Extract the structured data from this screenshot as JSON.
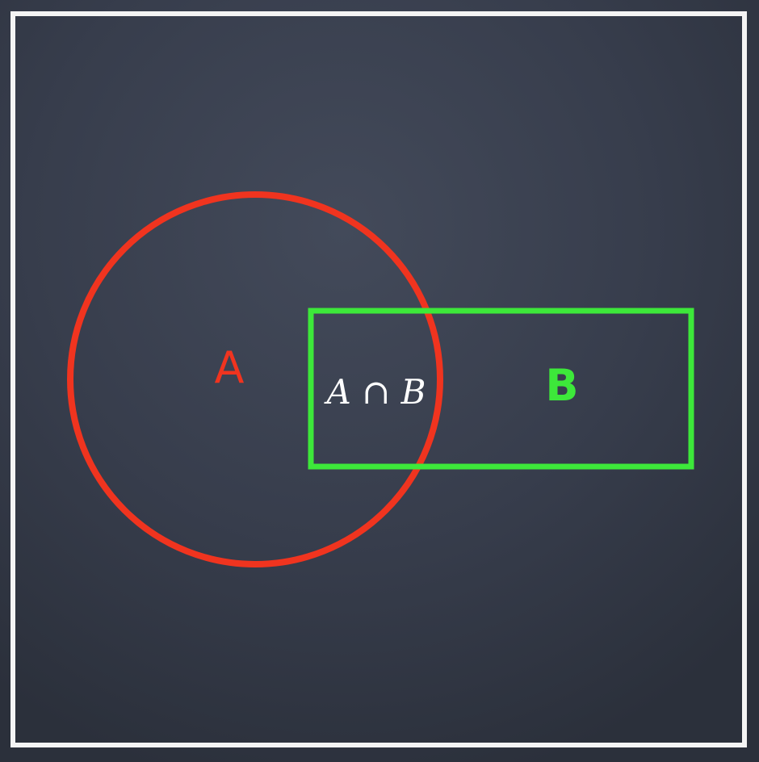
{
  "diagram": {
    "background_color": "#363c4b",
    "frame_color": "#f4f4f4",
    "set_a": {
      "label": "A",
      "color": "#f0341f"
    },
    "set_b": {
      "label": "B",
      "color": "#3de83a"
    },
    "intersection": {
      "label": "A ∩ B",
      "color": "#ffffff"
    }
  }
}
